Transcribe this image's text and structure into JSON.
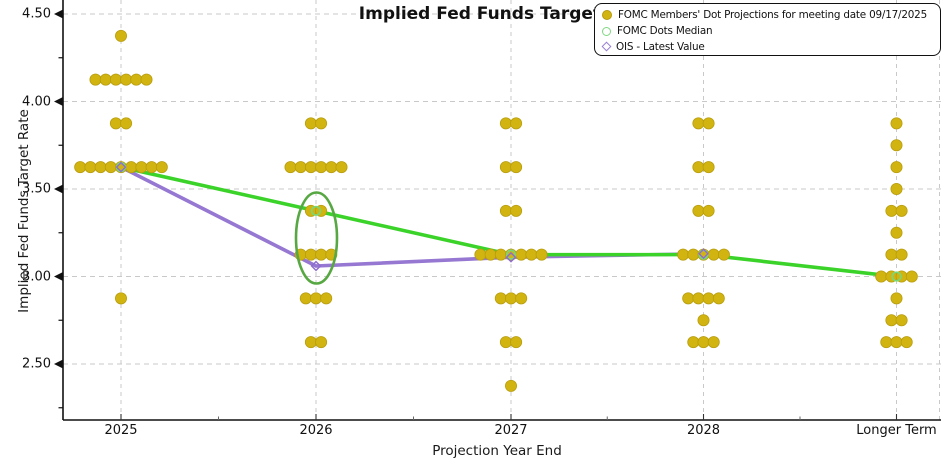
{
  "title": "Implied Fed Funds Target Rate",
  "axes": {
    "y_title": "Implied Fed Funds Target Rate",
    "x_title": "Projection Year End"
  },
  "legend": {
    "items": [
      {
        "label": "FOMC Members' Dot Projections for meeting date 09/17/2025",
        "marker": "filled-circle",
        "color": "#d2b411"
      },
      {
        "label": "FOMC Dots Median",
        "marker": "open-circle",
        "color": "#7fd87f"
      },
      {
        "label": "OIS - Latest Value",
        "marker": "open-diamond",
        "color": "#9a7fd4"
      }
    ]
  },
  "chart_data": {
    "type": "scatter",
    "title": "Implied Fed Funds Target Rate",
    "xlabel": "Projection Year End",
    "ylabel": "Implied Fed Funds Target Rate",
    "categories": [
      "2025",
      "2026",
      "2027",
      "2028",
      "Longer Term"
    ],
    "y_ticks": [
      2.5,
      3.0,
      3.5,
      4.0,
      4.5
    ],
    "y_minor_ticks": [
      2.25,
      2.75,
      3.25,
      3.75,
      4.25
    ],
    "ylim": [
      2.18,
      4.58
    ],
    "grid": true,
    "legend_position": "top-right",
    "dot_series": {
      "name": "FOMC Members' Dot Projections for meeting date 09/17/2025",
      "color": "#d2b411",
      "dots": [
        {
          "category": "2025",
          "value": 4.375,
          "count": 1
        },
        {
          "category": "2025",
          "value": 4.125,
          "count": 6
        },
        {
          "category": "2025",
          "value": 3.875,
          "count": 2
        },
        {
          "category": "2025",
          "value": 3.625,
          "count": 9
        },
        {
          "category": "2025",
          "value": 2.875,
          "count": 1
        },
        {
          "category": "2026",
          "value": 3.875,
          "count": 2
        },
        {
          "category": "2026",
          "value": 3.625,
          "count": 6
        },
        {
          "category": "2026",
          "value": 3.375,
          "count": 2
        },
        {
          "category": "2026",
          "value": 3.125,
          "count": 4
        },
        {
          "category": "2026",
          "value": 2.875,
          "count": 3
        },
        {
          "category": "2026",
          "value": 2.625,
          "count": 2
        },
        {
          "category": "2027",
          "value": 3.875,
          "count": 2
        },
        {
          "category": "2027",
          "value": 3.625,
          "count": 2
        },
        {
          "category": "2027",
          "value": 3.375,
          "count": 2
        },
        {
          "category": "2027",
          "value": 3.125,
          "count": 7
        },
        {
          "category": "2027",
          "value": 2.875,
          "count": 3
        },
        {
          "category": "2027",
          "value": 2.625,
          "count": 2
        },
        {
          "category": "2027",
          "value": 2.375,
          "count": 1
        },
        {
          "category": "2028",
          "value": 3.875,
          "count": 2
        },
        {
          "category": "2028",
          "value": 3.625,
          "count": 2
        },
        {
          "category": "2028",
          "value": 3.375,
          "count": 2
        },
        {
          "category": "2028",
          "value": 3.125,
          "count": 5
        },
        {
          "category": "2028",
          "value": 2.875,
          "count": 4
        },
        {
          "category": "2028",
          "value": 2.75,
          "count": 1
        },
        {
          "category": "2028",
          "value": 2.625,
          "count": 3
        },
        {
          "category": "Longer Term",
          "value": 3.875,
          "count": 1
        },
        {
          "category": "Longer Term",
          "value": 3.75,
          "count": 1
        },
        {
          "category": "Longer Term",
          "value": 3.625,
          "count": 1
        },
        {
          "category": "Longer Term",
          "value": 3.5,
          "count": 1
        },
        {
          "category": "Longer Term",
          "value": 3.375,
          "count": 2
        },
        {
          "category": "Longer Term",
          "value": 3.25,
          "count": 1
        },
        {
          "category": "Longer Term",
          "value": 3.125,
          "count": 2
        },
        {
          "category": "Longer Term",
          "value": 3.0,
          "count": 4
        },
        {
          "category": "Longer Term",
          "value": 2.875,
          "count": 1
        },
        {
          "category": "Longer Term",
          "value": 2.75,
          "count": 2
        },
        {
          "category": "Longer Term",
          "value": 2.625,
          "count": 3
        }
      ]
    },
    "median_series": {
      "name": "FOMC Dots Median",
      "line_color": "#3bd32a",
      "marker_color": "#78d878",
      "values": [
        3.625,
        3.375,
        3.125,
        3.125,
        3.0
      ]
    },
    "ois_series": {
      "name": "OIS - Latest Value",
      "line_color": "#9678d2",
      "marker_color": "#8d6cce",
      "values": [
        3.625,
        3.06,
        3.11,
        3.13,
        null
      ]
    },
    "annotation": {
      "type": "ellipse",
      "category": "2026",
      "center_value": 3.22,
      "value_radius": 0.26,
      "color": "#57a843"
    }
  }
}
